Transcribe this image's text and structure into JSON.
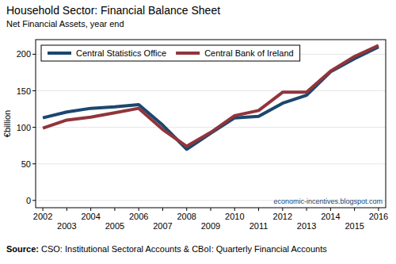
{
  "chart_data": {
    "type": "line",
    "title": "Household Sector: Financial Balance Sheet",
    "subtitle": "Net Financial Assets, year end",
    "y_label": "€billion",
    "annotation": "economic-incentives.blogspot.com",
    "source": "Source: CSO: Institutional Sectoral Accounts & CBoI: Quarterly Financial Accounts",
    "x": [
      2002,
      2003,
      2004,
      2005,
      2006,
      2007,
      2008,
      2009,
      2010,
      2011,
      2012,
      2013,
      2014,
      2015,
      2016
    ],
    "xlim": [
      2001.7,
      2016.3
    ],
    "xticks": [
      2002,
      2003,
      2004,
      2005,
      2006,
      2007,
      2008,
      2009,
      2010,
      2011,
      2012,
      2013,
      2014,
      2015,
      2016
    ],
    "ylim": [
      -10,
      220
    ],
    "yticks": [
      0,
      50,
      100,
      150,
      200
    ],
    "grid": true,
    "legend": "top-left",
    "series": [
      {
        "name": "Central Statistics Office",
        "color": "#1a476f",
        "values": [
          113,
          121,
          126,
          128,
          131,
          103,
          70,
          92,
          113,
          115,
          133,
          144,
          176,
          194,
          210
        ]
      },
      {
        "name": "Central Bank of Ireland",
        "color": "#90353b",
        "values": [
          99,
          110,
          114,
          120,
          126,
          97,
          74,
          93,
          116,
          123,
          148,
          148,
          177,
          197,
          212
        ]
      }
    ]
  }
}
